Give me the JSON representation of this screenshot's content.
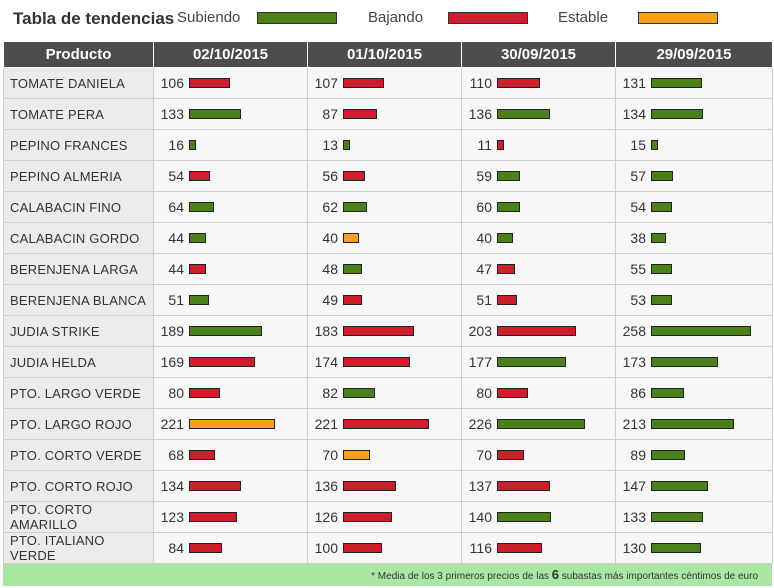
{
  "legend": {
    "title": "Tabla de tendencias",
    "up": "Subiendo",
    "down": "Bajando",
    "stable": "Estable",
    "colors": {
      "up": "#4a7f1a",
      "down": "#cc1f2b",
      "stable": "#f6a11d"
    }
  },
  "table": {
    "headers": [
      "Producto",
      "02/10/2015",
      "01/10/2015",
      "30/09/2015",
      "29/09/2015"
    ],
    "rows": [
      {
        "product": "TOMATE DANIELA",
        "values": [
          106,
          107,
          110,
          131
        ],
        "trend": [
          "down",
          "down",
          "down",
          "up"
        ]
      },
      {
        "product": "TOMATE PERA",
        "values": [
          133,
          87,
          136,
          134
        ],
        "trend": [
          "up",
          "down",
          "up",
          "up"
        ]
      },
      {
        "product": "PEPINO FRANCES",
        "values": [
          16,
          13,
          11,
          15
        ],
        "trend": [
          "up",
          "up",
          "down",
          "up"
        ]
      },
      {
        "product": "PEPINO ALMERIA",
        "values": [
          54,
          56,
          59,
          57
        ],
        "trend": [
          "down",
          "down",
          "up",
          "up"
        ]
      },
      {
        "product": "CALABACIN FINO",
        "values": [
          64,
          62,
          60,
          54
        ],
        "trend": [
          "up",
          "up",
          "up",
          "up"
        ]
      },
      {
        "product": "CALABACIN GORDO",
        "values": [
          44,
          40,
          40,
          38
        ],
        "trend": [
          "up",
          "stable",
          "up",
          "up"
        ]
      },
      {
        "product": "BERENJENA LARGA",
        "values": [
          44,
          48,
          47,
          55
        ],
        "trend": [
          "down",
          "up",
          "down",
          "up"
        ]
      },
      {
        "product": "BERENJENA BLANCA",
        "values": [
          51,
          49,
          51,
          53
        ],
        "trend": [
          "up",
          "down",
          "down",
          "up"
        ]
      },
      {
        "product": "JUDIA STRIKE",
        "values": [
          189,
          183,
          203,
          258
        ],
        "trend": [
          "up",
          "down",
          "down",
          "up"
        ]
      },
      {
        "product": "JUDIA HELDA",
        "values": [
          169,
          174,
          177,
          173
        ],
        "trend": [
          "down",
          "down",
          "up",
          "up"
        ]
      },
      {
        "product": "PTO. LARGO VERDE",
        "values": [
          80,
          82,
          80,
          86
        ],
        "trend": [
          "down",
          "up",
          "down",
          "up"
        ]
      },
      {
        "product": "PTO. LARGO ROJO",
        "values": [
          221,
          221,
          226,
          213
        ],
        "trend": [
          "stable",
          "down",
          "up",
          "up"
        ]
      },
      {
        "product": "PTO. CORTO VERDE",
        "values": [
          68,
          70,
          70,
          89
        ],
        "trend": [
          "down",
          "stable",
          "down",
          "up"
        ]
      },
      {
        "product": "PTO. CORTO ROJO",
        "values": [
          134,
          136,
          137,
          147
        ],
        "trend": [
          "down",
          "down",
          "down",
          "up"
        ]
      },
      {
        "product": "PTO. CORTO AMARILLO",
        "values": [
          123,
          126,
          140,
          133
        ],
        "trend": [
          "down",
          "down",
          "up",
          "up"
        ]
      },
      {
        "product": "PTO. ITALIANO VERDE",
        "values": [
          84,
          100,
          116,
          130
        ],
        "trend": [
          "down",
          "down",
          "down",
          "up"
        ]
      }
    ]
  },
  "footer": {
    "text_before": "* Media de los 3 primeros precios de las ",
    "count": "6",
    "text_after": " subastas más importantes céntimos de euro"
  }
}
